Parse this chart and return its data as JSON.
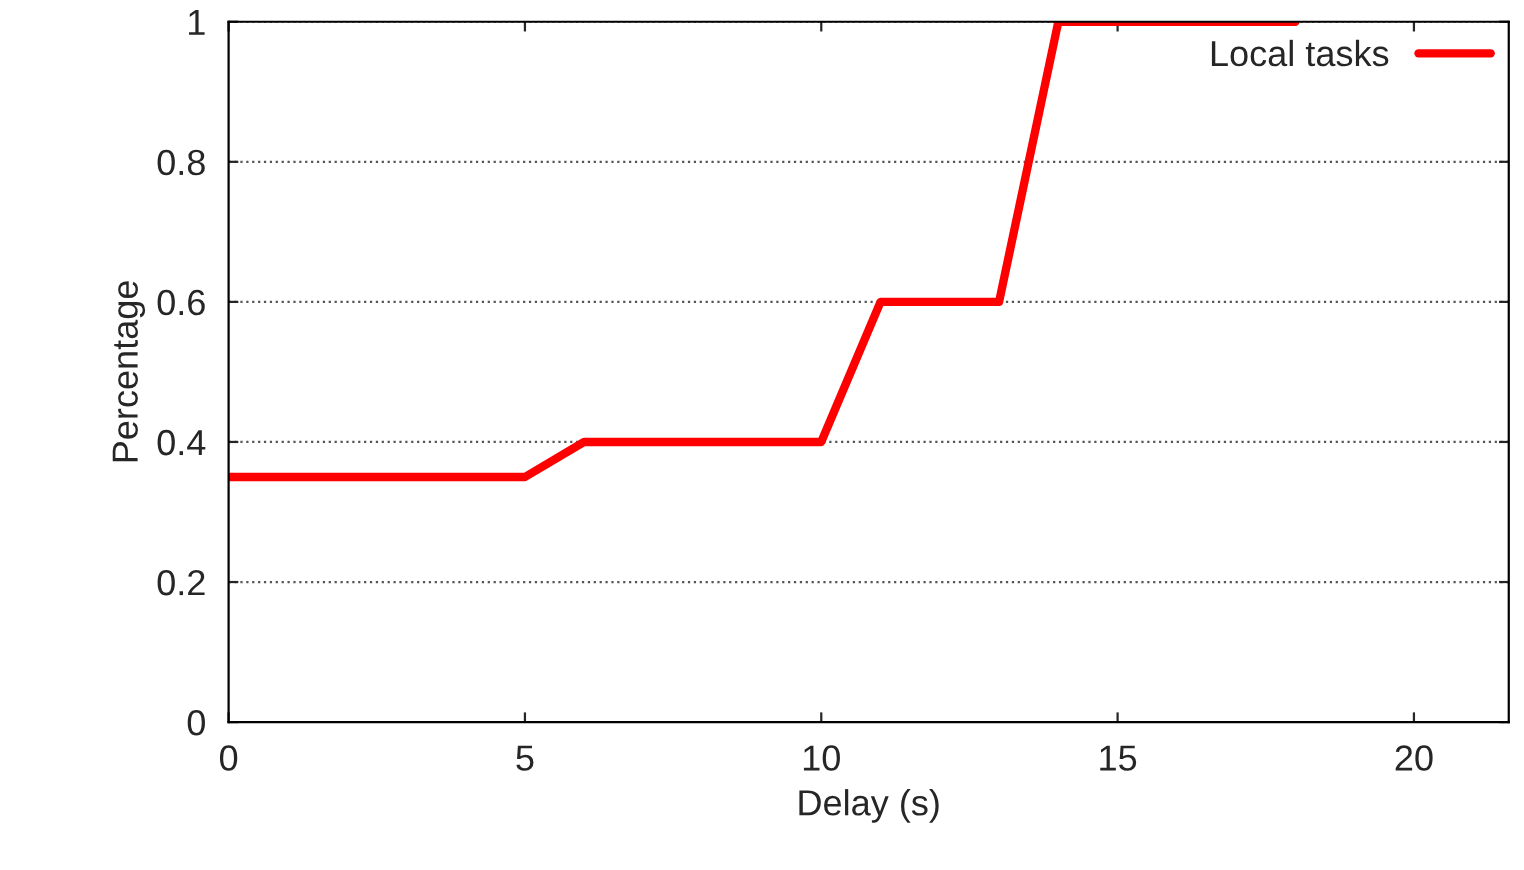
{
  "chart_data": {
    "type": "line",
    "xlabel": "Delay (s)",
    "ylabel": "Percentage",
    "x": [
      0,
      5,
      6,
      10,
      11,
      13,
      14,
      18
    ],
    "series": [
      {
        "name": "Local tasks",
        "color": "#ff0000",
        "values": [
          0.35,
          0.35,
          0.4,
          0.4,
          0.6,
          0.6,
          1,
          1
        ]
      }
    ],
    "xlim": [
      0,
      21.6
    ],
    "xticks": [
      0,
      5,
      10,
      15,
      20
    ],
    "ylim": [
      0,
      1
    ],
    "yticks": [
      0,
      0.2,
      0.4,
      0.6,
      0.8,
      1
    ],
    "grid": "y",
    "legend": "top right",
    "line_style": "solid",
    "marker": "none"
  }
}
